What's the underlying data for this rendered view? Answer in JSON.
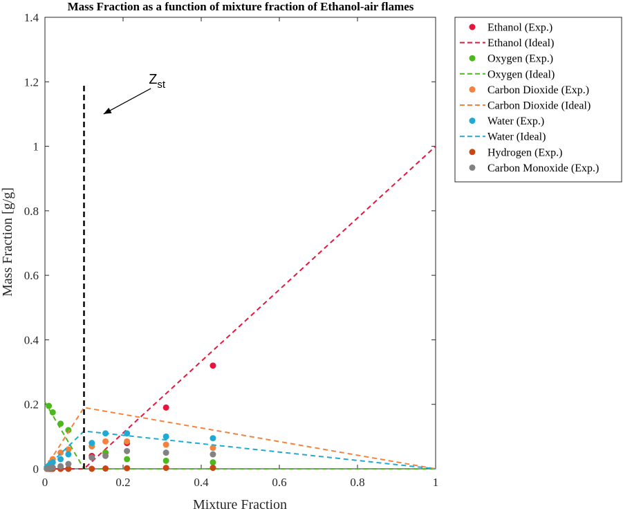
{
  "chart_data": {
    "type": "scatter",
    "title": "Mass Fraction as a function of mixture fraction of Ethanol-air flames",
    "xlabel": "Mixture Fraction",
    "ylabel": "Mass Fraction [g/g]",
    "xlim": [
      0,
      1
    ],
    "ylim": [
      0,
      1.4
    ],
    "xticks": [
      0,
      0.2,
      0.4,
      0.6,
      0.8,
      1
    ],
    "xtick_labels": [
      "0",
      "0.2",
      "0.4",
      "0.6",
      "0.8",
      "1"
    ],
    "yticks": [
      0,
      0.2,
      0.4,
      0.6,
      0.8,
      1,
      1.2,
      1.4
    ],
    "ytick_labels": [
      "0",
      "0.2",
      "0.4",
      "0.6",
      "0.8",
      "1",
      "1.2",
      "1.4"
    ],
    "grid": false,
    "legend_position": "outside-top-right",
    "annotation": {
      "label_main": "Z",
      "label_sub": "st",
      "stoich_x": 0.1,
      "line_y_top": 1.19,
      "arrow_from": [
        0.28,
        1.19
      ],
      "arrow_to": [
        0.15,
        1.1
      ],
      "text_at": [
        0.28,
        1.22
      ],
      "color": "#000000"
    },
    "series": [
      {
        "name": "Ethanol (Exp.)",
        "kind": "scatter",
        "color": "#e8143c",
        "x": [
          0.005,
          0.01,
          0.015,
          0.02,
          0.04,
          0.06,
          0.12,
          0.155,
          0.21,
          0.31,
          0.43
        ],
        "y": [
          0,
          0,
          0,
          0,
          0,
          0,
          0.04,
          0.05,
          0.08,
          0.19,
          0.32
        ]
      },
      {
        "name": "Ethanol (Ideal)",
        "kind": "line",
        "color": "#e8143c",
        "x": [
          0,
          0.1,
          1
        ],
        "y": [
          0,
          0,
          1
        ]
      },
      {
        "name": "Oxygen (Exp.)",
        "kind": "scatter",
        "color": "#4cb81e",
        "x": [
          0.01,
          0.02,
          0.04,
          0.06,
          0.12,
          0.155,
          0.21,
          0.31,
          0.43
        ],
        "y": [
          0.195,
          0.175,
          0.14,
          0.12,
          0.07,
          0.05,
          0.03,
          0.025,
          0.02
        ]
      },
      {
        "name": "Oxygen (Ideal)",
        "kind": "line",
        "color": "#4cb81e",
        "x": [
          0,
          0.1,
          1
        ],
        "y": [
          0.207,
          0,
          0
        ]
      },
      {
        "name": "Carbon Dioxide (Exp.)",
        "kind": "scatter",
        "color": "#f5823c",
        "x": [
          0.005,
          0.01,
          0.015,
          0.02,
          0.04,
          0.06,
          0.12,
          0.155,
          0.21,
          0.31,
          0.43
        ],
        "y": [
          0.005,
          0.01,
          0.02,
          0.03,
          0.05,
          0.06,
          0.07,
          0.085,
          0.085,
          0.075,
          0.065
        ]
      },
      {
        "name": "Carbon Dioxide (Ideal)",
        "kind": "line",
        "color": "#f5823c",
        "x": [
          0,
          0.1,
          1
        ],
        "y": [
          0,
          0.19,
          0
        ]
      },
      {
        "name": "Water (Exp.)",
        "kind": "scatter",
        "color": "#1eaad2",
        "x": [
          0.005,
          0.01,
          0.015,
          0.02,
          0.04,
          0.06,
          0.12,
          0.155,
          0.21,
          0.31,
          0.43
        ],
        "y": [
          0.005,
          0.01,
          0.015,
          0.02,
          0.03,
          0.045,
          0.08,
          0.11,
          0.11,
          0.1,
          0.095
        ]
      },
      {
        "name": "Water (Ideal)",
        "kind": "line",
        "color": "#1eaad2",
        "x": [
          0,
          0.1,
          1
        ],
        "y": [
          0,
          0.117,
          0
        ]
      },
      {
        "name": "Hydrogen (Exp.)",
        "kind": "scatter",
        "color": "#c84614",
        "x": [
          0.005,
          0.01,
          0.015,
          0.02,
          0.04,
          0.06,
          0.12,
          0.155,
          0.21,
          0.31,
          0.43
        ],
        "y": [
          0,
          0,
          0,
          0,
          0,
          0,
          0,
          0.001,
          0.002,
          0.003,
          0.003
        ]
      },
      {
        "name": "Carbon Monoxide (Exp.)",
        "kind": "scatter",
        "color": "#828282",
        "x": [
          0.005,
          0.01,
          0.015,
          0.02,
          0.04,
          0.06,
          0.12,
          0.155,
          0.21,
          0.31,
          0.43
        ],
        "y": [
          0,
          0.002,
          0.003,
          0.004,
          0.008,
          0.015,
          0.035,
          0.04,
          0.055,
          0.05,
          0.045
        ]
      }
    ]
  }
}
